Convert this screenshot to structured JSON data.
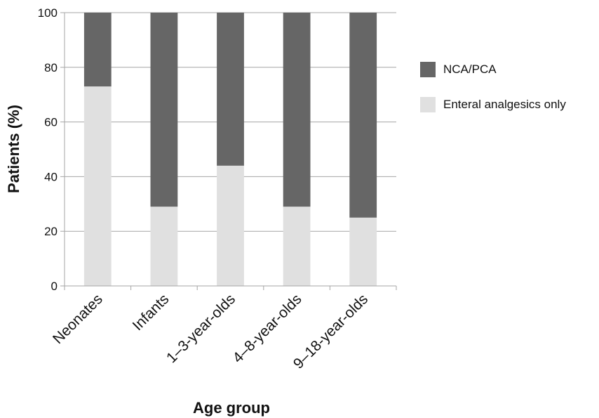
{
  "chart_data": {
    "type": "bar",
    "stacked": true,
    "categories": [
      "Neonates",
      "Infants",
      "1–3-year-olds",
      "4–8-year-olds",
      "9–18-year-olds"
    ],
    "series": [
      {
        "name": "Enteral analgesics only",
        "values": [
          73,
          29,
          44,
          29,
          25
        ],
        "color": "#e0e0e0"
      },
      {
        "name": "NCA/PCA",
        "values": [
          27,
          71,
          56,
          71,
          75
        ],
        "color": "#666666"
      }
    ],
    "xlabel": "Age group",
    "ylabel": "Patients (%)",
    "ylim": [
      0,
      100
    ],
    "yticks": [
      0,
      20,
      40,
      60,
      80,
      100
    ],
    "grid": true,
    "legend_position": "right"
  }
}
